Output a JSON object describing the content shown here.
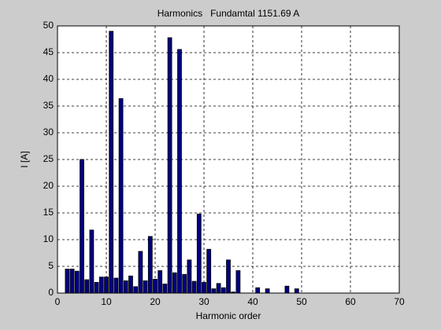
{
  "chart_data": {
    "type": "bar",
    "title": "Harmonics   Fundamtal 1151.69 A",
    "x_label": "Harmonic order",
    "y_label": "I [A]",
    "x": [
      2,
      3,
      4,
      5,
      6,
      7,
      8,
      9,
      10,
      11,
      12,
      13,
      14,
      15,
      16,
      17,
      18,
      19,
      20,
      21,
      22,
      23,
      24,
      25,
      26,
      27,
      28,
      29,
      30,
      31,
      32,
      33,
      34,
      35,
      36,
      37,
      38,
      39,
      40,
      41,
      42,
      43,
      44,
      45,
      46,
      47,
      48,
      49
    ],
    "values": [
      4.5,
      4.5,
      4.1,
      25,
      2.5,
      11.8,
      2,
      3,
      3,
      49,
      2.8,
      36.4,
      2.3,
      3.2,
      1.2,
      7.8,
      2.3,
      10.6,
      2.6,
      4.2,
      1.7,
      47.8,
      3.8,
      45.6,
      3.5,
      6.2,
      2.2,
      14.8,
      2,
      8.2,
      0.8,
      1.8,
      1,
      6.2,
      0.2,
      4.2,
      0,
      0,
      0,
      1,
      0,
      0.8,
      0,
      0,
      0,
      1.3,
      0,
      0.8
    ],
    "color": "#000080",
    "xlim": [
      0,
      70
    ],
    "xticks": [
      0,
      10,
      20,
      30,
      40,
      50,
      60,
      70
    ],
    "ylim": [
      0,
      50
    ],
    "yticks": [
      0,
      5,
      10,
      15,
      20,
      25,
      30,
      35,
      40,
      45,
      50
    ],
    "grid": true
  }
}
